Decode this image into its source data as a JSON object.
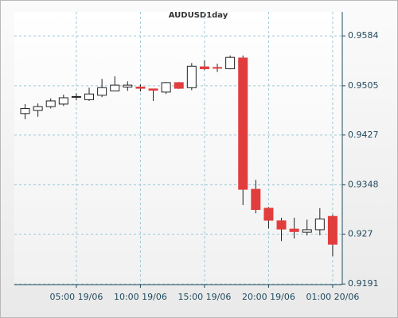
{
  "chart_data": {
    "type": "candlestick",
    "title": "AUDUSD1day",
    "x": [
      1,
      2,
      3,
      4,
      5,
      6,
      7,
      8,
      9,
      10,
      11,
      12,
      13,
      14,
      15,
      16,
      17,
      18,
      19,
      20,
      21,
      22,
      23,
      24,
      25
    ],
    "open": [
      0.9461,
      0.9466,
      0.9472,
      0.9476,
      0.9487,
      0.9483,
      0.949,
      0.9497,
      0.9503,
      0.9503,
      0.95,
      0.9495,
      0.951,
      0.9502,
      0.9535,
      0.9534,
      0.9532,
      0.9549,
      0.9341,
      0.9311,
      0.9291,
      0.9278,
      0.9273,
      0.9277,
      0.9298
    ],
    "high": [
      0.9476,
      0.9477,
      0.9485,
      0.9491,
      0.9493,
      0.9502,
      0.9516,
      0.952,
      0.9512,
      0.9507,
      0.95,
      0.9511,
      0.9511,
      0.9541,
      0.9545,
      0.954,
      0.9553,
      0.9553,
      0.9356,
      0.9313,
      0.9296,
      0.9296,
      0.9293,
      0.9311,
      0.9301
    ],
    "low": [
      0.9452,
      0.9456,
      0.9469,
      0.9473,
      0.9482,
      0.9481,
      0.9487,
      0.9497,
      0.9497,
      0.9496,
      0.9481,
      0.9492,
      0.95,
      0.9498,
      0.953,
      0.9527,
      0.9531,
      0.9316,
      0.9303,
      0.9279,
      0.9259,
      0.9263,
      0.9268,
      0.9268,
      0.9235
    ],
    "close": [
      0.9469,
      0.9472,
      0.9481,
      0.9486,
      0.9488,
      0.9492,
      0.9502,
      0.9506,
      0.9506,
      0.9501,
      0.9498,
      0.951,
      0.9501,
      0.9536,
      0.9532,
      0.9533,
      0.955,
      0.9341,
      0.9309,
      0.9292,
      0.9278,
      0.9274,
      0.9277,
      0.9294,
      0.9254
    ],
    "up_color": "#ffffff",
    "down_color": "#e23d3d",
    "xlim": [
      0.16,
      25.75
    ],
    "xticks": [
      {
        "value": 5,
        "label": "05:00 19/06"
      },
      {
        "value": 10,
        "label": "10:00 19/06"
      },
      {
        "value": 15,
        "label": "15:00 19/06"
      },
      {
        "value": 20,
        "label": "20:00 19/06"
      },
      {
        "value": 25,
        "label": "01:00 20/06"
      }
    ],
    "ylim": [
      0.919,
      0.9622
    ],
    "yticks": [
      0.9191,
      0.927,
      0.9348,
      0.9427,
      0.9505,
      0.9584
    ],
    "grid": true
  }
}
